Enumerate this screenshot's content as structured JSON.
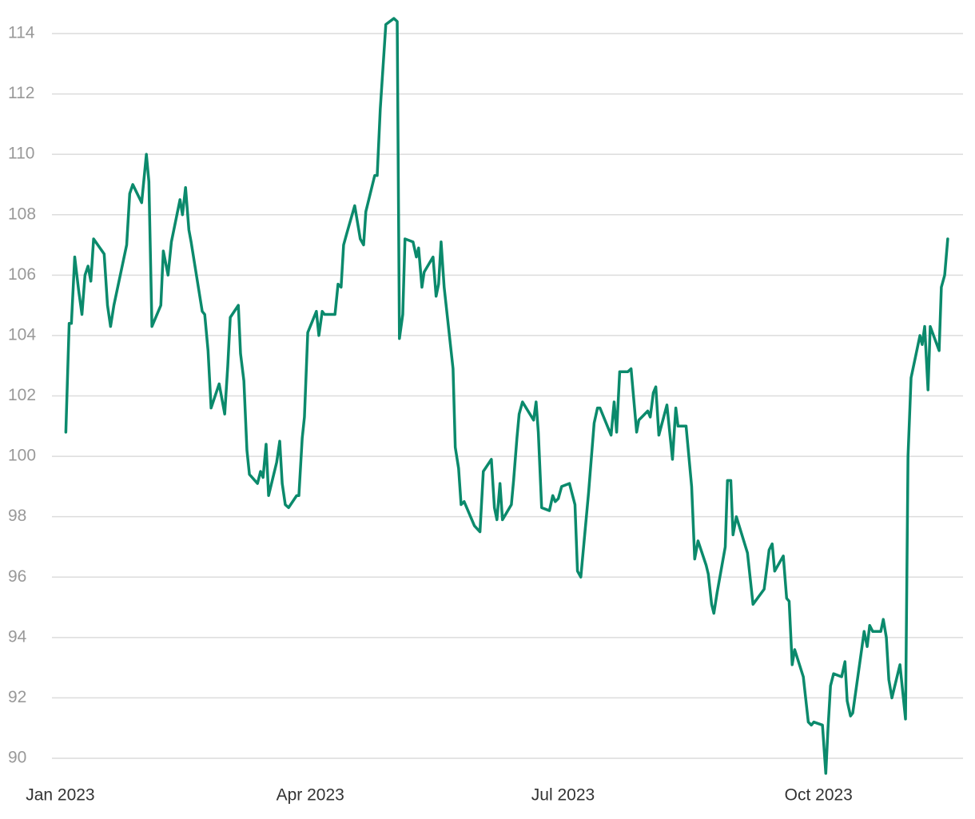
{
  "chart_data": {
    "type": "line",
    "color": "#0b8a6c",
    "grid": true,
    "xlim": [
      -3,
      325
    ],
    "ylim": [
      89.4,
      114.6
    ],
    "xticks": [
      {
        "value": 0,
        "label": "Jan 2023"
      },
      {
        "value": 90,
        "label": "Apr 2023"
      },
      {
        "value": 181,
        "label": "Jul 2023"
      },
      {
        "value": 273,
        "label": "Oct 2023"
      }
    ],
    "yticks": [
      90,
      92,
      94,
      96,
      98,
      100,
      102,
      104,
      106,
      108,
      110,
      112,
      114
    ],
    "x": [
      2,
      3.2,
      4,
      5.2,
      6.6,
      7.8,
      8.9,
      10,
      11,
      12,
      15.8,
      17,
      18.1,
      19.3,
      23.9,
      25,
      26.1,
      29.3,
      31,
      31.9,
      33,
      36.2,
      37.1,
      38.8,
      40,
      43.1,
      44,
      45.1,
      46.3,
      47.1,
      51.1,
      52,
      53.2,
      54.3,
      57.2,
      59.2,
      60.3,
      61.2,
      64.1,
      64.9,
      66.1,
      67.2,
      68.1,
      71,
      72.1,
      73,
      74.1,
      75,
      77.9,
      79,
      79.9,
      81,
      82.2,
      85.1,
      85.9,
      87.1,
      87.9,
      89.1,
      92.2,
      93.1,
      94.3,
      95.1,
      98.9,
      100,
      101.1,
      102,
      103.2,
      106,
      108,
      109.2,
      110,
      113.2,
      114.1,
      115.2,
      117.2,
      120.1,
      121.3,
      122.1,
      123.3,
      124.1,
      127,
      128.2,
      129,
      130.2,
      131,
      134.2,
      135.3,
      136.2,
      137.1,
      138.2,
      141.4,
      142.2,
      143.4,
      144.3,
      145.4,
      149.1,
      151.1,
      152.3,
      155.2,
      156.3,
      157.2,
      158.3,
      159.2,
      162.4,
      163.2,
      164.4,
      165.2,
      166.4,
      170.4,
      171.3,
      172.1,
      173.3,
      176.1,
      177.3,
      178.2,
      179.3,
      180.5,
      183.3,
      185.3,
      186.2,
      187.4,
      190.2,
      192.2,
      193.4,
      194.3,
      198.3,
      199.4,
      200.3,
      201.4,
      204.3,
      205.5,
      207.5,
      208.3,
      211.5,
      212.4,
      213.5,
      214.4,
      215.5,
      218.4,
      220.4,
      221.6,
      222.4,
      225.3,
      227.3,
      228.4,
      229.6,
      232.5,
      233.3,
      234.5,
      235.3,
      236.5,
      239.4,
      240.2,
      241.4,
      242.2,
      243.4,
      247.4,
      249.4,
      253.4,
      255.2,
      256.3,
      257.2,
      260.3,
      261.5,
      262.4,
      263.5,
      264.4,
      267.5,
      269.3,
      270.4,
      271.3,
      274.4,
      275.6,
      276.4,
      277.3,
      278.4,
      281.3,
      282.5,
      283.3,
      284.5,
      285.3,
      288.5,
      289.4,
      290.5,
      291.4,
      292.5,
      295.4,
      296.3,
      297.4,
      298.3,
      299.4,
      302.3,
      304.3,
      305.2,
      306.3,
      309.5,
      310.3,
      311.2,
      312.4,
      313.2,
      316.4,
      317.2,
      318.4,
      319.5
    ],
    "values": [
      100.8,
      104.4,
      104.4,
      106.6,
      105.5,
      104.7,
      106.0,
      106.3,
      105.8,
      107.2,
      106.7,
      105.0,
      104.3,
      105.0,
      107.0,
      108.7,
      109.0,
      108.4,
      110.0,
      109.1,
      104.3,
      105.0,
      106.8,
      106.0,
      107.1,
      108.5,
      108.0,
      108.9,
      107.5,
      107.1,
      104.8,
      104.7,
      103.5,
      101.6,
      102.4,
      101.4,
      103.0,
      104.6,
      105.0,
      103.4,
      102.5,
      100.2,
      99.4,
      99.1,
      99.5,
      99.3,
      100.4,
      98.7,
      99.8,
      100.5,
      99.1,
      98.4,
      98.3,
      98.7,
      98.7,
      100.6,
      101.3,
      104.1,
      104.8,
      104.0,
      104.8,
      104.7,
      104.7,
      105.7,
      105.6,
      107.0,
      107.4,
      108.3,
      107.2,
      107.0,
      108.1,
      109.3,
      109.3,
      111.5,
      114.3,
      114.5,
      114.4,
      103.9,
      104.7,
      107.2,
      107.1,
      106.6,
      106.9,
      105.6,
      106.1,
      106.6,
      105.3,
      105.7,
      107.1,
      105.6,
      102.9,
      100.3,
      99.6,
      98.4,
      98.5,
      97.7,
      97.5,
      99.5,
      99.9,
      98.3,
      97.9,
      99.1,
      97.9,
      98.4,
      99.2,
      100.6,
      101.4,
      101.8,
      101.2,
      101.8,
      100.8,
      98.3,
      98.2,
      98.7,
      98.5,
      98.6,
      99.0,
      99.1,
      98.4,
      96.2,
      96.0,
      98.8,
      101.1,
      101.6,
      101.6,
      100.7,
      101.8,
      100.8,
      102.8,
      102.8,
      102.9,
      100.8,
      101.2,
      101.5,
      101.3,
      102.1,
      102.3,
      100.7,
      101.7,
      99.9,
      101.6,
      101.0,
      101.0,
      99.0,
      96.6,
      97.2,
      96.4,
      96.1,
      95.1,
      94.8,
      95.5,
      97.0,
      99.2,
      99.2,
      97.4,
      98.0,
      96.8,
      95.1,
      95.6,
      96.9,
      97.1,
      96.2,
      96.7,
      95.3,
      95.2,
      93.1,
      93.6,
      92.7,
      91.2,
      91.1,
      91.2,
      91.1,
      89.5,
      91.0,
      92.4,
      92.8,
      92.7,
      93.2,
      91.9,
      91.4,
      91.5,
      93.6,
      94.2,
      93.7,
      94.4,
      94.2,
      94.2,
      94.6,
      94.0,
      92.6,
      92.0,
      93.1,
      91.3,
      100.0,
      102.6,
      104.0,
      103.7,
      104.3,
      102.2,
      104.3,
      103.5,
      105.6,
      106.0,
      107.2
    ]
  }
}
